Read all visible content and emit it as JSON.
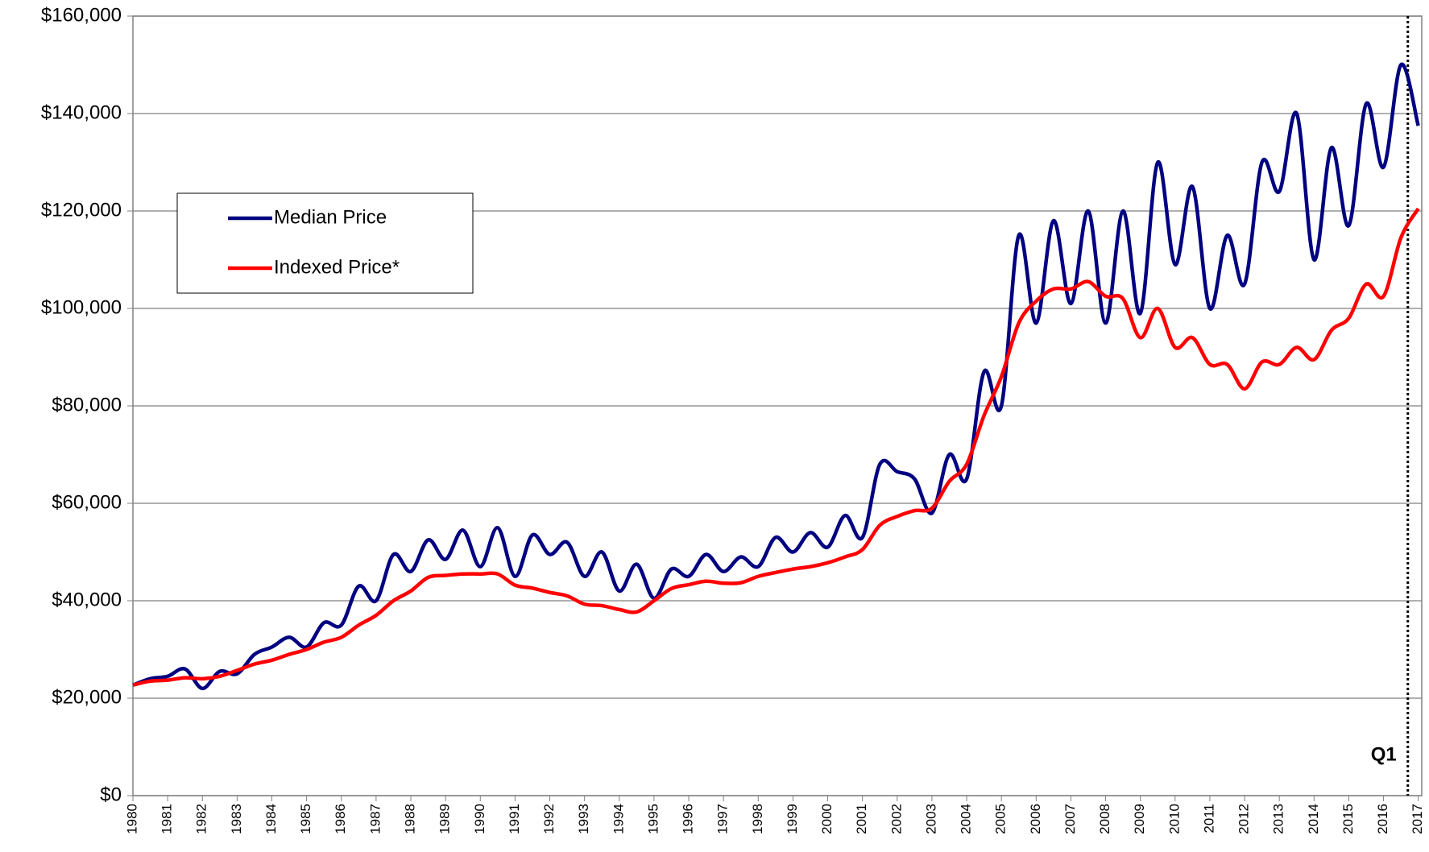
{
  "chart_data": {
    "type": "line",
    "x": [
      1980,
      1980.5,
      1981,
      1981.5,
      1982,
      1982.5,
      1983,
      1983.5,
      1984,
      1984.5,
      1985,
      1985.5,
      1986,
      1986.5,
      1987,
      1987.5,
      1988,
      1988.5,
      1989,
      1989.5,
      1990,
      1990.5,
      1991,
      1991.5,
      1992,
      1992.5,
      1993,
      1993.5,
      1994,
      1994.5,
      1995,
      1995.5,
      1996,
      1996.5,
      1997,
      1997.5,
      1998,
      1998.5,
      1999,
      1999.5,
      2000,
      2000.5,
      2001,
      2001.5,
      2002,
      2002.5,
      2003,
      2003.5,
      2004,
      2004.5,
      2005,
      2005.5,
      2006,
      2006.5,
      2007,
      2007.5,
      2008,
      2008.5,
      2009,
      2009.5,
      2010,
      2010.5,
      2011,
      2011.5,
      2012,
      2012.5,
      2013,
      2013.5,
      2014,
      2014.5,
      2015,
      2015.5,
      2016,
      2016.5,
      2017
    ],
    "series": [
      {
        "name": "Median Price",
        "color": "#000080",
        "values": [
          22700,
          24000,
          24500,
          26000,
          22000,
          25500,
          25000,
          29000,
          30500,
          32500,
          30500,
          35500,
          35000,
          43000,
          40000,
          49500,
          46000,
          52500,
          48500,
          54500,
          47000,
          55000,
          45000,
          53500,
          49500,
          52000,
          45000,
          50000,
          42000,
          47500,
          40500,
          46500,
          45000,
          49500,
          46000,
          49000,
          47000,
          53000,
          50000,
          54000,
          51000,
          57500,
          53000,
          68000,
          66500,
          65000,
          58000,
          70000,
          65000,
          87000,
          80000,
          115000,
          97000,
          118000,
          101000,
          120000,
          97000,
          120000,
          99000,
          130000,
          109000,
          125000,
          100000,
          115000,
          105000,
          130000,
          124000,
          140000,
          110000,
          133000,
          117000,
          142000,
          129000,
          150000,
          137500
        ]
      },
      {
        "name": "Indexed Price*",
        "color": "#ff0000",
        "values": [
          22700,
          23500,
          23700,
          24200,
          24000,
          24500,
          25700,
          27000,
          27800,
          29000,
          30000,
          31500,
          32500,
          35000,
          37000,
          40000,
          42000,
          44800,
          45200,
          45500,
          45500,
          45500,
          43200,
          42600,
          41700,
          41000,
          39300,
          39000,
          38200,
          37700,
          40000,
          42500,
          43300,
          44000,
          43600,
          43700,
          45000,
          45800,
          46500,
          47000,
          47800,
          49000,
          50500,
          55500,
          57300,
          58500,
          59000,
          64500,
          68000,
          78000,
          86000,
          97000,
          101500,
          104000,
          104000,
          105500,
          102500,
          102000,
          94000,
          100000,
          92000,
          94000,
          88500,
          88500,
          83500,
          89000,
          88500,
          92000,
          89500,
          95500,
          98000,
          105000,
          102500,
          114500,
          120500
        ]
      }
    ],
    "xlim": [
      1980,
      2017.1
    ],
    "xticks": [
      1980,
      1981,
      1982,
      1983,
      1984,
      1985,
      1986,
      1987,
      1988,
      1989,
      1990,
      1991,
      1992,
      1993,
      1994,
      1995,
      1996,
      1997,
      1998,
      1999,
      2000,
      2001,
      2002,
      2003,
      2004,
      2005,
      2006,
      2007,
      2008,
      2009,
      2010,
      2011,
      2012,
      2013,
      2014,
      2015,
      2016,
      2017
    ],
    "ylim": [
      0,
      160000
    ],
    "yticks": [
      {
        "value": 0,
        "label": "$0"
      },
      {
        "value": 20000,
        "label": "$20,000"
      },
      {
        "value": 40000,
        "label": "$40,000"
      },
      {
        "value": 60000,
        "label": "$60,000"
      },
      {
        "value": 80000,
        "label": "$80,000"
      },
      {
        "value": 100000,
        "label": "$100,000"
      },
      {
        "value": 120000,
        "label": "$120,000"
      },
      {
        "value": 140000,
        "label": "$140,000"
      },
      {
        "value": 160000,
        "label": "$160,000"
      }
    ],
    "grid": true,
    "legend": "upper left",
    "annotation": {
      "text": "Q1",
      "x": 2016.7
    }
  }
}
